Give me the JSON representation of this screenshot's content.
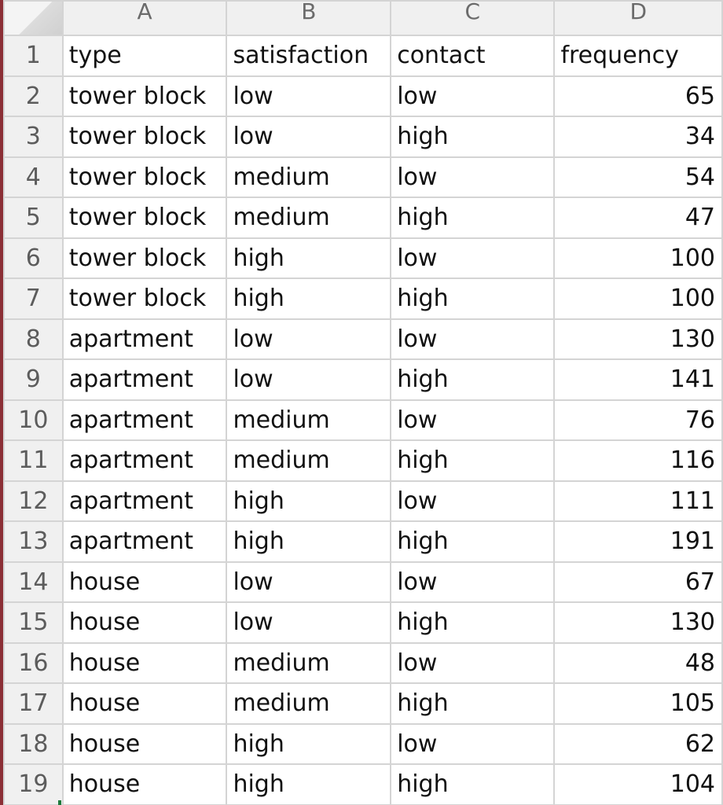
{
  "columns": [
    "A",
    "B",
    "C",
    "D"
  ],
  "rows": [
    {
      "n": "1",
      "type": "type",
      "satisfaction": "satisfaction",
      "contact": "contact",
      "frequency": "frequency"
    },
    {
      "n": "2",
      "type": "tower block",
      "satisfaction": "low",
      "contact": "low",
      "frequency": "65"
    },
    {
      "n": "3",
      "type": "tower block",
      "satisfaction": "low",
      "contact": "high",
      "frequency": "34"
    },
    {
      "n": "4",
      "type": "tower block",
      "satisfaction": "medium",
      "contact": "low",
      "frequency": "54"
    },
    {
      "n": "5",
      "type": "tower block",
      "satisfaction": "medium",
      "contact": "high",
      "frequency": "47"
    },
    {
      "n": "6",
      "type": "tower block",
      "satisfaction": "high",
      "contact": "low",
      "frequency": "100"
    },
    {
      "n": "7",
      "type": "tower block",
      "satisfaction": "high",
      "contact": "high",
      "frequency": "100"
    },
    {
      "n": "8",
      "type": "apartment",
      "satisfaction": "low",
      "contact": "low",
      "frequency": "130"
    },
    {
      "n": "9",
      "type": "apartment",
      "satisfaction": "low",
      "contact": "high",
      "frequency": "141"
    },
    {
      "n": "10",
      "type": "apartment",
      "satisfaction": "medium",
      "contact": "low",
      "frequency": "76"
    },
    {
      "n": "11",
      "type": "apartment",
      "satisfaction": "medium",
      "contact": "high",
      "frequency": "116"
    },
    {
      "n": "12",
      "type": "apartment",
      "satisfaction": "high",
      "contact": "low",
      "frequency": "111"
    },
    {
      "n": "13",
      "type": "apartment",
      "satisfaction": "high",
      "contact": "high",
      "frequency": "191"
    },
    {
      "n": "14",
      "type": "house",
      "satisfaction": "low",
      "contact": "low",
      "frequency": "67"
    },
    {
      "n": "15",
      "type": "house",
      "satisfaction": "low",
      "contact": "high",
      "frequency": "130"
    },
    {
      "n": "16",
      "type": "house",
      "satisfaction": "medium",
      "contact": "low",
      "frequency": "48"
    },
    {
      "n": "17",
      "type": "house",
      "satisfaction": "medium",
      "contact": "high",
      "frequency": "105"
    },
    {
      "n": "18",
      "type": "house",
      "satisfaction": "high",
      "contact": "low",
      "frequency": "62"
    },
    {
      "n": "19",
      "type": "house",
      "satisfaction": "high",
      "contact": "high",
      "frequency": "104"
    }
  ]
}
